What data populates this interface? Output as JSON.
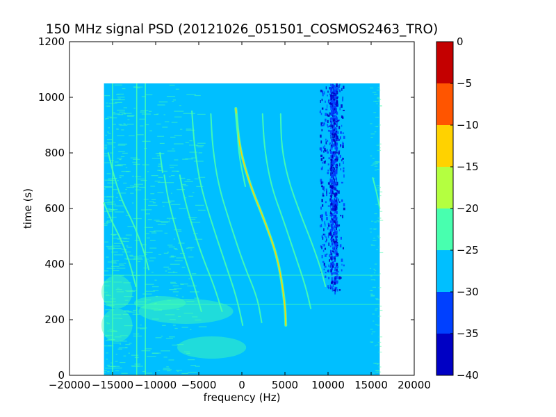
{
  "chart_data": {
    "type": "heatmap",
    "title": "150 MHz signal PSD (20121026_051501_COSMOS2463_TRO)",
    "xlabel": "frequency (Hz)",
    "ylabel": "time (s)",
    "xlim": [
      -20000,
      20000
    ],
    "ylim": [
      0,
      1200
    ],
    "x_ticks": [
      -20000,
      -15000,
      -10000,
      -5000,
      0,
      5000,
      10000,
      15000,
      20000
    ],
    "x_tick_labels": [
      "−20000",
      "−15000",
      "−10000",
      "−5000",
      "0",
      "5000",
      "10000",
      "15000",
      "20000"
    ],
    "y_ticks": [
      0,
      200,
      400,
      600,
      800,
      1000,
      1200
    ],
    "y_tick_labels": [
      "0",
      "200",
      "400",
      "600",
      "800",
      "1000",
      "1200"
    ],
    "data_extent": {
      "x": [
        -16000,
        16000
      ],
      "y": [
        0,
        1050
      ]
    },
    "background_level": -27.5,
    "colorbar": {
      "range": [
        -40,
        0
      ],
      "ticks": [
        0,
        -5,
        -10,
        -15,
        -20,
        -25,
        -30,
        -35,
        -40
      ],
      "tick_labels": [
        "0",
        "−5",
        "−10",
        "−15",
        "−20",
        "−25",
        "−30",
        "−35",
        "−40"
      ],
      "levels": [
        {
          "range": [
            -40,
            -35
          ],
          "color": "#0000c4"
        },
        {
          "range": [
            -35,
            -30
          ],
          "color": "#0040ff"
        },
        {
          "range": [
            -30,
            -25
          ],
          "color": "#00bfff"
        },
        {
          "range": [
            -25,
            -20
          ],
          "color": "#48ffaf"
        },
        {
          "range": [
            -20,
            -15
          ],
          "color": "#b4ff40"
        },
        {
          "range": [
            -15,
            -10
          ],
          "color": "#ffd200"
        },
        {
          "range": [
            -10,
            -5
          ],
          "color": "#ff5500"
        },
        {
          "range": [
            -5,
            0
          ],
          "color": "#c40000"
        }
      ]
    },
    "vertical_lines": [
      {
        "x": -11200,
        "t0": 0,
        "t1": 1050,
        "level": -22
      },
      {
        "x": -12200,
        "t0": 0,
        "t1": 1050,
        "level": -23
      },
      {
        "x": -15000,
        "t0": 0,
        "t1": 1050,
        "level": -24
      }
    ],
    "horizontal_lines": [
      {
        "y": 360,
        "level": -23
      },
      {
        "y": 255,
        "level": -23
      }
    ],
    "doppler_tracks": [
      {
        "level": -13,
        "points": [
          [
            -700,
            960
          ],
          [
            -300,
            820
          ],
          [
            1000,
            680
          ],
          [
            2600,
            560
          ],
          [
            4200,
            420
          ],
          [
            5000,
            260
          ],
          [
            5100,
            180
          ]
        ]
      },
      {
        "level": -21,
        "points": [
          [
            -5800,
            950
          ],
          [
            -5500,
            820
          ],
          [
            -4800,
            680
          ],
          [
            -3300,
            530
          ],
          [
            -1900,
            400
          ],
          [
            -600,
            280
          ],
          [
            100,
            180
          ]
        ]
      },
      {
        "level": -21,
        "points": [
          [
            -3600,
            940
          ],
          [
            -3400,
            820
          ],
          [
            -2700,
            680
          ],
          [
            -1300,
            540
          ],
          [
            200,
            400
          ],
          [
            1800,
            280
          ],
          [
            2300,
            190
          ]
        ]
      },
      {
        "level": -22,
        "points": [
          [
            -600,
            940
          ],
          [
            -400,
            800
          ],
          [
            400,
            680
          ]
        ]
      },
      {
        "level": -22,
        "points": [
          [
            2400,
            940
          ],
          [
            2600,
            820
          ],
          [
            3400,
            680
          ],
          [
            4800,
            560
          ],
          [
            6200,
            430
          ],
          [
            7400,
            320
          ],
          [
            8000,
            240
          ]
        ]
      },
      {
        "level": -22,
        "points": [
          [
            4500,
            940
          ],
          [
            4600,
            820
          ],
          [
            5400,
            700
          ],
          [
            6800,
            580
          ],
          [
            8200,
            470
          ],
          [
            9200,
            380
          ],
          [
            9700,
            320
          ]
        ]
      },
      {
        "level": -23,
        "points": [
          [
            -9000,
            720
          ],
          [
            -8600,
            640
          ],
          [
            -7800,
            540
          ],
          [
            -6600,
            420
          ],
          [
            -5500,
            320
          ],
          [
            -4700,
            230
          ]
        ]
      },
      {
        "level": -23,
        "points": [
          [
            -7200,
            720
          ],
          [
            -6700,
            640
          ],
          [
            -5800,
            540
          ],
          [
            -4500,
            420
          ],
          [
            -3200,
            320
          ],
          [
            -2300,
            230
          ]
        ]
      },
      {
        "level": -23,
        "points": [
          [
            -9500,
            800
          ],
          [
            -9200,
            730
          ]
        ]
      },
      {
        "level": -22,
        "points": [
          [
            -15500,
            800
          ],
          [
            -14700,
            700
          ],
          [
            -13800,
            620
          ],
          [
            -12800,
            560
          ],
          [
            -12000,
            500
          ],
          [
            -11300,
            440
          ],
          [
            -10800,
            380
          ]
        ]
      },
      {
        "level": -23,
        "points": [
          [
            -16000,
            620
          ],
          [
            -15200,
            560
          ],
          [
            -14200,
            500
          ],
          [
            -13400,
            440
          ],
          [
            -12800,
            380
          ],
          [
            -12300,
            320
          ]
        ]
      },
      {
        "level": -24,
        "points": [
          [
            15200,
            710
          ],
          [
            15700,
            650
          ],
          [
            16000,
            600
          ]
        ]
      }
    ],
    "blobs": [
      {
        "x": -6500,
        "y": 230,
        "rx": 5500,
        "ry": 45,
        "level": -23
      },
      {
        "x": -3500,
        "y": 100,
        "rx": 4000,
        "ry": 40,
        "level": -24
      },
      {
        "x": -9500,
        "y": 260,
        "rx": 3000,
        "ry": 25,
        "level": -23
      },
      {
        "x": -14500,
        "y": 300,
        "rx": 1800,
        "ry": 60,
        "level": -24
      },
      {
        "x": -14500,
        "y": 180,
        "rx": 1800,
        "ry": 60,
        "level": -24
      }
    ],
    "low_power_band": {
      "x": [
        9000,
        11800
      ],
      "y": [
        300,
        1050
      ],
      "core": [
        10200,
        11000
      ]
    }
  }
}
